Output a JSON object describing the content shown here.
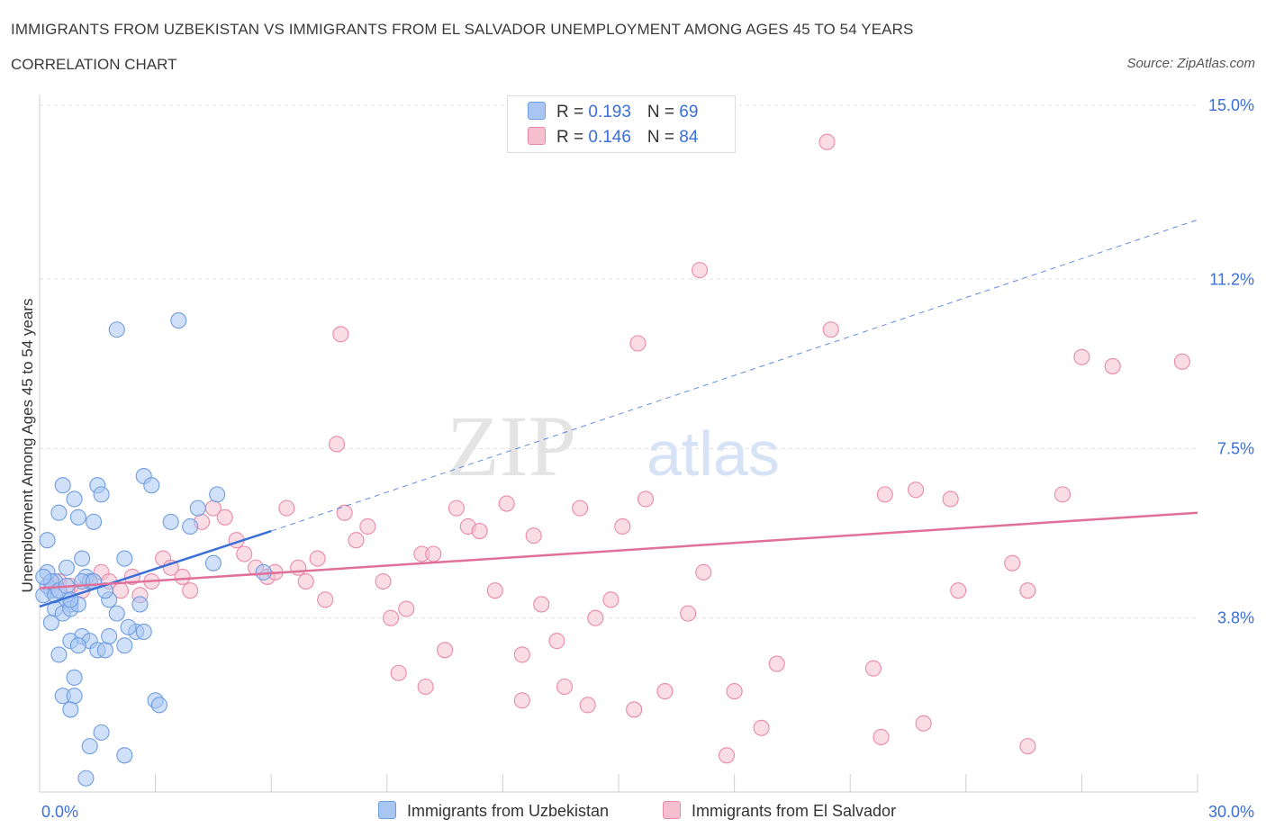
{
  "header": {
    "title": "IMMIGRANTS FROM UZBEKISTAN VS IMMIGRANTS FROM EL SALVADOR UNEMPLOYMENT AMONG AGES 45 TO 54 YEARS",
    "subtitle": "CORRELATION CHART",
    "source": "Source: ZipAtlas.com"
  },
  "legend": {
    "rows": [
      {
        "r_label": "R = ",
        "r_value": "0.193",
        "n_label": "N = ",
        "n_value": "69"
      },
      {
        "r_label": "R = ",
        "r_value": "0.146",
        "n_label": "N = ",
        "n_value": "84"
      }
    ]
  },
  "bottom_legend": {
    "series1": "Immigrants from Uzbekistan",
    "series2": "Immigrants from El Salvador"
  },
  "watermark": {
    "zip": "ZIP",
    "atlas": "atlas"
  },
  "colors": {
    "blue_fill": "#a9c6f3",
    "blue_stroke": "#6e9de0",
    "blue_line": "#3a6fd8",
    "pink_fill": "#f6bfd0",
    "pink_stroke": "#e98aa8",
    "pink_line": "#e07099",
    "grid": "#e2e2e2",
    "tick_text": "#3a6fd8"
  },
  "chart_data": {
    "type": "scatter",
    "title": "IMMIGRANTS FROM UZBEKISTAN VS IMMIGRANTS FROM EL SALVADOR UNEMPLOYMENT AMONG AGES 45 TO 54 YEARS",
    "xlabel": "",
    "ylabel": "Unemployment Among Ages 45 to 54 years",
    "xlim": [
      0,
      30
    ],
    "ylim": [
      0,
      15
    ],
    "x_tick_labels": [
      "0.0%",
      "30.0%"
    ],
    "y_ticks": [
      3.8,
      7.5,
      11.2,
      15.0
    ],
    "y_tick_labels": [
      "3.8%",
      "7.5%",
      "11.2%",
      "15.0%"
    ],
    "grid": true,
    "legend_position": "top-center",
    "series": [
      {
        "name": "Immigrants from Uzbekistan",
        "R": 0.193,
        "N": 69,
        "trend": {
          "x0": 0.0,
          "y0": 4.05,
          "x1": 6.0,
          "y1": 5.7,
          "dashed_to_x": 30.0,
          "dashed_to_y": 12.5
        },
        "points": [
          [
            0.2,
            5.5
          ],
          [
            0.3,
            4.4
          ],
          [
            0.4,
            4.6
          ],
          [
            0.5,
            6.1
          ],
          [
            0.6,
            6.7
          ],
          [
            0.7,
            4.9
          ],
          [
            0.8,
            4.1
          ],
          [
            0.9,
            6.4
          ],
          [
            1.0,
            6.0
          ],
          [
            1.1,
            5.1
          ],
          [
            1.2,
            4.7
          ],
          [
            1.3,
            4.6
          ],
          [
            1.4,
            5.9
          ],
          [
            1.5,
            6.7
          ],
          [
            1.6,
            6.5
          ],
          [
            1.8,
            4.2
          ],
          [
            2.0,
            3.9
          ],
          [
            0.2,
            4.5
          ],
          [
            0.3,
            3.7
          ],
          [
            0.4,
            4.0
          ],
          [
            0.6,
            3.9
          ],
          [
            0.7,
            4.2
          ],
          [
            0.8,
            4.0
          ],
          [
            1.0,
            4.1
          ],
          [
            1.1,
            3.4
          ],
          [
            1.3,
            3.3
          ],
          [
            1.5,
            3.1
          ],
          [
            1.7,
            3.1
          ],
          [
            2.2,
            3.2
          ],
          [
            2.5,
            3.5
          ],
          [
            0.8,
            3.3
          ],
          [
            1.0,
            3.2
          ],
          [
            0.5,
            3.0
          ],
          [
            1.8,
            3.4
          ],
          [
            2.3,
            3.6
          ],
          [
            2.7,
            3.5
          ],
          [
            0.9,
            2.5
          ],
          [
            0.6,
            2.1
          ],
          [
            0.9,
            2.1
          ],
          [
            0.8,
            1.8
          ],
          [
            1.6,
            1.3
          ],
          [
            1.3,
            1.0
          ],
          [
            2.2,
            0.8
          ],
          [
            1.2,
            0.3
          ],
          [
            3.0,
            2.0
          ],
          [
            3.1,
            1.9
          ],
          [
            2.6,
            4.1
          ],
          [
            2.7,
            6.9
          ],
          [
            2.9,
            6.7
          ],
          [
            3.4,
            5.9
          ],
          [
            3.6,
            10.3
          ],
          [
            3.9,
            5.8
          ],
          [
            4.1,
            6.2
          ],
          [
            4.6,
            6.5
          ],
          [
            4.5,
            5.0
          ],
          [
            5.8,
            4.8
          ],
          [
            2.0,
            10.1
          ],
          [
            0.1,
            4.3
          ],
          [
            0.2,
            4.8
          ],
          [
            0.3,
            4.6
          ],
          [
            0.4,
            4.3
          ],
          [
            0.5,
            4.4
          ],
          [
            0.7,
            4.5
          ],
          [
            0.8,
            4.2
          ],
          [
            1.1,
            4.6
          ],
          [
            1.4,
            4.6
          ],
          [
            1.7,
            4.4
          ],
          [
            2.2,
            5.1
          ],
          [
            0.1,
            4.7
          ]
        ]
      },
      {
        "name": "Immigrants from El Salvador",
        "R": 0.146,
        "N": 84,
        "trend": {
          "x0": 0.0,
          "y0": 4.45,
          "x1": 30.0,
          "y1": 6.1
        },
        "points": [
          [
            0.3,
            4.5
          ],
          [
            0.5,
            4.6
          ],
          [
            0.8,
            4.5
          ],
          [
            1.1,
            4.4
          ],
          [
            1.3,
            4.6
          ],
          [
            1.6,
            4.8
          ],
          [
            1.8,
            4.6
          ],
          [
            2.1,
            4.4
          ],
          [
            2.4,
            4.7
          ],
          [
            2.6,
            4.3
          ],
          [
            2.9,
            4.6
          ],
          [
            3.2,
            5.1
          ],
          [
            3.4,
            4.9
          ],
          [
            3.7,
            4.7
          ],
          [
            3.9,
            4.4
          ],
          [
            4.2,
            5.9
          ],
          [
            4.5,
            6.2
          ],
          [
            4.8,
            6.0
          ],
          [
            5.1,
            5.5
          ],
          [
            5.3,
            5.2
          ],
          [
            5.6,
            4.9
          ],
          [
            5.9,
            4.7
          ],
          [
            6.1,
            4.8
          ],
          [
            6.4,
            6.2
          ],
          [
            6.7,
            4.9
          ],
          [
            6.9,
            4.6
          ],
          [
            7.2,
            5.1
          ],
          [
            7.4,
            4.2
          ],
          [
            7.7,
            7.6
          ],
          [
            7.9,
            6.1
          ],
          [
            8.2,
            5.5
          ],
          [
            8.5,
            5.8
          ],
          [
            8.9,
            4.6
          ],
          [
            9.1,
            3.8
          ],
          [
            9.5,
            4.0
          ],
          [
            9.9,
            5.2
          ],
          [
            10.2,
            5.2
          ],
          [
            10.5,
            3.1
          ],
          [
            10.8,
            6.2
          ],
          [
            11.1,
            5.8
          ],
          [
            11.4,
            5.7
          ],
          [
            11.8,
            4.4
          ],
          [
            12.1,
            6.3
          ],
          [
            12.5,
            3.0
          ],
          [
            12.8,
            5.6
          ],
          [
            13.0,
            4.1
          ],
          [
            13.4,
            3.3
          ],
          [
            13.6,
            2.3
          ],
          [
            14.0,
            6.2
          ],
          [
            14.4,
            3.8
          ],
          [
            14.8,
            4.2
          ],
          [
            15.1,
            5.8
          ],
          [
            15.4,
            1.8
          ],
          [
            15.7,
            6.4
          ],
          [
            16.2,
            2.2
          ],
          [
            16.8,
            3.9
          ],
          [
            17.2,
            4.8
          ],
          [
            17.8,
            0.8
          ],
          [
            18.0,
            2.2
          ],
          [
            18.7,
            1.4
          ],
          [
            19.1,
            2.8
          ],
          [
            20.5,
            10.1
          ],
          [
            21.9,
            6.5
          ],
          [
            22.7,
            6.6
          ],
          [
            22.9,
            1.5
          ],
          [
            23.6,
            6.4
          ],
          [
            23.8,
            4.4
          ],
          [
            27.0,
            9.5
          ],
          [
            27.8,
            9.3
          ],
          [
            29.6,
            9.4
          ],
          [
            17.1,
            11.4
          ],
          [
            15.5,
            9.8
          ],
          [
            7.8,
            10.0
          ],
          [
            20.4,
            14.2
          ],
          [
            21.6,
            2.7
          ],
          [
            21.8,
            1.2
          ],
          [
            25.6,
            1.0
          ],
          [
            25.2,
            5.0
          ],
          [
            25.6,
            4.4
          ],
          [
            26.5,
            6.5
          ],
          [
            12.5,
            2.0
          ],
          [
            9.3,
            2.6
          ],
          [
            10.0,
            2.3
          ],
          [
            14.2,
            1.9
          ]
        ]
      }
    ]
  }
}
